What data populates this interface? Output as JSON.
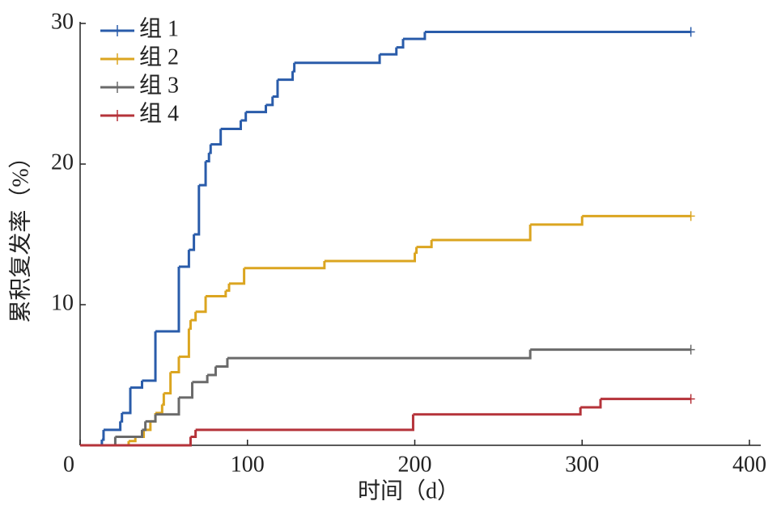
{
  "chart_data": {
    "type": "step",
    "xlabel": "时间（d）",
    "ylabel": "累积复发率（%）",
    "xlim": [
      0,
      400
    ],
    "xticks": [
      0,
      100,
      200,
      300,
      400
    ],
    "ylim": [
      0,
      30
    ],
    "yticks": [
      10,
      20,
      30
    ],
    "legend": "upper left",
    "series": [
      {
        "name": "组 1",
        "color": "#2a5caa",
        "x": [
          0,
          13,
          14,
          24,
          25,
          30,
          37,
          45,
          59,
          65,
          68,
          71,
          75,
          77,
          78,
          84,
          96,
          99,
          111,
          115,
          118,
          127,
          128,
          179,
          189,
          193,
          206,
          365
        ],
        "values": [
          0,
          0.4,
          1.1,
          1.7,
          2.3,
          4.1,
          4.6,
          8.1,
          12.7,
          13.9,
          15.0,
          18.5,
          20.2,
          20.8,
          21.4,
          22.5,
          23.1,
          23.7,
          24.2,
          24.8,
          26.0,
          26.6,
          27.2,
          27.8,
          28.3,
          28.9,
          29.4,
          29.4
        ]
      },
      {
        "name": "组 2",
        "color": "#dba520",
        "x": [
          0,
          29,
          33,
          38,
          42,
          45,
          49,
          50,
          54,
          59,
          65,
          66,
          69,
          75,
          87,
          89,
          98,
          146,
          200,
          201,
          210,
          269,
          300,
          365
        ],
        "values": [
          0,
          0.3,
          0.6,
          1.1,
          1.7,
          2.3,
          2.9,
          3.7,
          5.2,
          6.3,
          8.3,
          8.9,
          9.5,
          10.6,
          11.0,
          11.5,
          12.6,
          13.1,
          13.7,
          14.1,
          14.6,
          15.7,
          16.3,
          16.3
        ]
      },
      {
        "name": "组 3",
        "color": "#6a6a6a",
        "x": [
          0,
          21,
          37,
          39,
          45,
          59,
          67,
          76,
          81,
          88,
          269,
          365
        ],
        "values": [
          0,
          0.6,
          1.1,
          1.7,
          2.2,
          3.4,
          4.5,
          5.0,
          5.6,
          6.2,
          6.8,
          6.8
        ]
      },
      {
        "name": "组 4",
        "color": "#b5333a",
        "x": [
          0,
          66,
          69,
          199,
          299,
          311,
          365
        ],
        "values": [
          0,
          0.6,
          1.1,
          2.2,
          2.7,
          3.3,
          3.3
        ]
      }
    ]
  }
}
